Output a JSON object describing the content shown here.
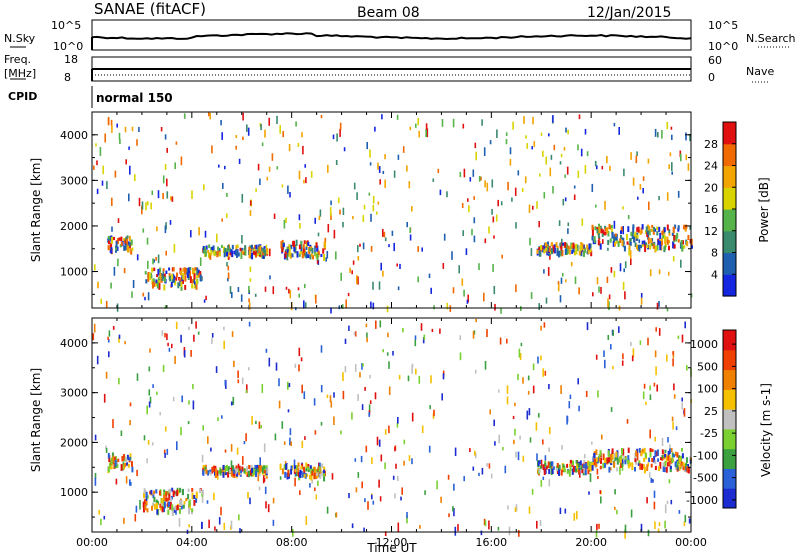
{
  "header": {
    "station": "SANAE (fitACF)",
    "beam": "Beam 08",
    "date": "12/Jan/2015"
  },
  "top_panels": {
    "nsky": {
      "label": "N.Sky",
      "ticks": [
        "10^5",
        "10^0"
      ]
    },
    "nsearch": {
      "label": "N.Search",
      "ticks": [
        "10^5",
        "10^0"
      ]
    },
    "freq": {
      "label_lines": [
        "Freq.",
        "[MHz]"
      ],
      "ticks": [
        "18",
        "8"
      ]
    },
    "nave": {
      "label": "Nave",
      "ticks": [
        "60",
        "0"
      ]
    },
    "cpid": {
      "label": "CPID",
      "mode": "normal 150"
    }
  },
  "chart_data": [
    {
      "type": "heatmap",
      "name": "power",
      "ylabel": "Slant Range [km]",
      "xlabel": "Time UT",
      "x_ticks": [
        "00:00",
        "04:00",
        "08:00",
        "12:00",
        "16:00",
        "20:00",
        "00:00"
      ],
      "y_ticks": [
        1000,
        2000,
        3000,
        4000
      ],
      "ylim": [
        200,
        4500
      ],
      "xlim_hours": [
        0,
        24
      ],
      "colorbar": {
        "label": "Power [dB]",
        "ticks": [
          "4",
          "8",
          "12",
          "16",
          "20",
          "24",
          "28"
        ],
        "colors": [
          "#1426e0",
          "#1e5fb0",
          "#3a8a6e",
          "#55b34a",
          "#d9d400",
          "#f2a400",
          "#f06a00",
          "#e01010"
        ]
      },
      "echo_bands": [
        {
          "t0": 0.6,
          "t1": 1.6,
          "r0": 1500,
          "r1": 1800
        },
        {
          "t0": 2.0,
          "t1": 4.4,
          "r0": 700,
          "r1": 1100
        },
        {
          "t0": 4.4,
          "t1": 7.0,
          "r0": 1400,
          "r1": 1600
        },
        {
          "t0": 7.5,
          "t1": 9.3,
          "r0": 1350,
          "r1": 1700
        },
        {
          "t0": 17.8,
          "t1": 20.0,
          "r0": 1450,
          "r1": 1650
        },
        {
          "t0": 20.0,
          "t1": 24.0,
          "r0": 1550,
          "r1": 2050
        }
      ]
    },
    {
      "type": "heatmap",
      "name": "velocity",
      "ylabel": "Slant Range [km]",
      "xlabel": "Time UT",
      "x_ticks": [
        "00:00",
        "04:00",
        "08:00",
        "12:00",
        "16:00",
        "20:00",
        "00:00"
      ],
      "y_ticks": [
        1000,
        2000,
        3000,
        4000
      ],
      "ylim": [
        200,
        4500
      ],
      "xlim_hours": [
        0,
        24
      ],
      "colorbar": {
        "label": "Velocity [m s-1]",
        "ticks": [
          "1000",
          "500",
          "100",
          "25",
          "-25",
          "-100",
          "-500",
          "-1000"
        ],
        "colors": [
          "#1c2cd0",
          "#2a60d8",
          "#3aa040",
          "#7ad030",
          "#c0c0c0",
          "#f5c000",
          "#f08000",
          "#f04000",
          "#e01010"
        ]
      },
      "echo_bands": [
        {
          "t0": 0.6,
          "t1": 1.6,
          "r0": 1500,
          "r1": 1800
        },
        {
          "t0": 2.0,
          "t1": 4.4,
          "r0": 650,
          "r1": 1100
        },
        {
          "t0": 4.4,
          "t1": 7.0,
          "r0": 1400,
          "r1": 1550
        },
        {
          "t0": 7.5,
          "t1": 9.3,
          "r0": 1350,
          "r1": 1600
        },
        {
          "t0": 17.8,
          "t1": 20.0,
          "r0": 1450,
          "r1": 1650
        },
        {
          "t0": 20.0,
          "t1": 24.0,
          "r0": 1500,
          "r1": 1900
        }
      ]
    }
  ]
}
